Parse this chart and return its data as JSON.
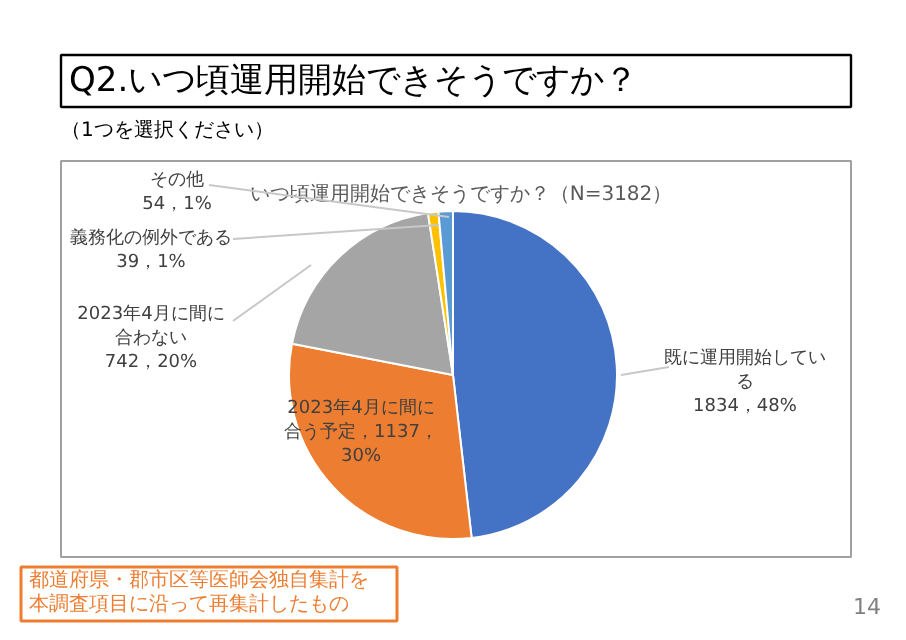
{
  "chart_data": {
    "type": "pie",
    "title": "Q2.いつ頃運用開始できそうですか？",
    "subtitle": "（1つを選択ください）",
    "annotations": [
      "いつ頃運用開始できそうですか？（N=3182）",
      "都道府県・郡市区等医師会独自集計を本調査項目に沿って再集計したもの",
      "14"
    ],
    "categories": [
      "既に運用開始している",
      "2023年4月に間に合う予定",
      "2023年4月に間に合わない",
      "義務化の例外である",
      "その他"
    ],
    "values": [
      1834,
      1137,
      742,
      39,
      54
    ],
    "colors": [
      "#4472c4",
      "#ed7d31",
      "#a5a5a5",
      "#ffc000",
      "#5b9bd5"
    ],
    "value_labels": [
      "1834，48%",
      "1137，30%",
      "742，20%",
      "39，1%",
      "54，1%"
    ]
  }
}
